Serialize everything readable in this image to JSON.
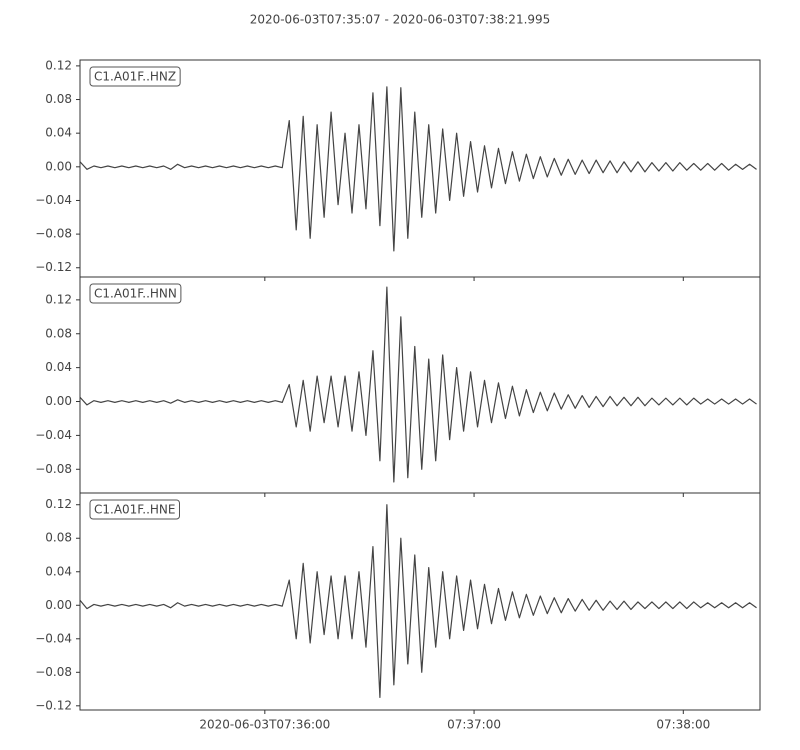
{
  "chart_data": {
    "type": "line",
    "title": "2020-06-03T07:35:07  -  2020-06-03T07:38:21.995",
    "xlim": [
      0,
      194.995
    ],
    "xticks": [
      {
        "value": 53,
        "label": "2020-06-03T07:36:00"
      },
      {
        "value": 113,
        "label": "07:37:00"
      },
      {
        "value": 173,
        "label": "07:38:00"
      }
    ],
    "x": [
      0,
      2,
      4,
      6,
      8,
      10,
      12,
      14,
      16,
      18,
      20,
      22,
      24,
      26,
      28,
      30,
      32,
      34,
      36,
      38,
      40,
      42,
      44,
      46,
      48,
      50,
      52,
      54,
      56,
      58,
      60,
      62,
      64,
      66,
      68,
      70,
      72,
      74,
      76,
      78,
      80,
      82,
      84,
      86,
      88,
      90,
      92,
      94,
      96,
      98,
      100,
      102,
      104,
      106,
      108,
      110,
      112,
      114,
      116,
      118,
      120,
      122,
      124,
      126,
      128,
      130,
      132,
      134,
      136,
      138,
      140,
      142,
      144,
      146,
      148,
      150,
      152,
      154,
      156,
      158,
      160,
      162,
      164,
      166,
      168,
      170,
      172,
      174,
      176,
      178,
      180,
      182,
      184,
      186,
      188,
      190,
      192,
      194
    ],
    "series": [
      {
        "name": "C1.A01F..HNZ",
        "color": "#444444",
        "ylim": [
          -0.131,
          0.127
        ],
        "yticks": [
          {
            "value": 0.12,
            "label": "0.12"
          },
          {
            "value": 0.08,
            "label": "0.08"
          },
          {
            "value": 0.04,
            "label": "0.04"
          },
          {
            "value": 0,
            "label": "0.00"
          },
          {
            "value": -0.04,
            "label": "−0.04"
          },
          {
            "value": -0.08,
            "label": "−0.08"
          },
          {
            "value": -0.12,
            "label": "−0.12"
          }
        ],
        "values": [
          0.006,
          -0.003,
          0.001,
          -0.001,
          0.001,
          -0.001,
          0.001,
          -0.001,
          0.001,
          -0.001,
          0.001,
          -0.001,
          0.001,
          -0.003,
          0.003,
          -0.001,
          0.001,
          -0.001,
          0.001,
          -0.001,
          0.001,
          -0.001,
          0.001,
          -0.001,
          0.001,
          -0.001,
          0.001,
          -0.001,
          0.001,
          -0.001,
          0.055,
          -0.075,
          0.06,
          -0.085,
          0.05,
          -0.06,
          0.065,
          -0.045,
          0.04,
          -0.055,
          0.05,
          -0.05,
          0.088,
          -0.07,
          0.095,
          -0.1,
          0.094,
          -0.085,
          0.065,
          -0.06,
          0.05,
          -0.055,
          0.045,
          -0.04,
          0.04,
          -0.035,
          0.03,
          -0.03,
          0.025,
          -0.025,
          0.022,
          -0.02,
          0.018,
          -0.017,
          0.015,
          -0.014,
          0.012,
          -0.012,
          0.01,
          -0.01,
          0.009,
          -0.009,
          0.008,
          -0.008,
          0.008,
          -0.007,
          0.007,
          -0.007,
          0.006,
          -0.006,
          0.006,
          -0.006,
          0.005,
          -0.005,
          0.005,
          -0.005,
          0.005,
          -0.004,
          0.004,
          -0.004,
          0.004,
          -0.004,
          0.004,
          -0.004,
          0.003,
          -0.003,
          0.003,
          -0.003
        ]
      },
      {
        "name": "C1.A01F..HNN",
        "color": "#444444",
        "ylim": [
          -0.108,
          0.147
        ],
        "yticks": [
          {
            "value": 0.12,
            "label": "0.12"
          },
          {
            "value": 0.08,
            "label": "0.08"
          },
          {
            "value": 0.04,
            "label": "0.04"
          },
          {
            "value": 0,
            "label": "0.00"
          },
          {
            "value": -0.04,
            "label": "−0.04"
          },
          {
            "value": -0.08,
            "label": "−0.08"
          }
        ],
        "values": [
          0.005,
          -0.004,
          0.001,
          -0.001,
          0.001,
          -0.001,
          0.001,
          -0.001,
          0.001,
          -0.001,
          0.001,
          -0.001,
          0.001,
          -0.002,
          0.002,
          -0.001,
          0.001,
          -0.001,
          0.001,
          -0.001,
          0.001,
          -0.001,
          0.001,
          -0.001,
          0.001,
          -0.001,
          0.001,
          -0.001,
          0.001,
          -0.001,
          0.02,
          -0.03,
          0.025,
          -0.035,
          0.03,
          -0.025,
          0.03,
          -0.03,
          0.03,
          -0.035,
          0.035,
          -0.04,
          0.06,
          -0.07,
          0.135,
          -0.095,
          0.1,
          -0.09,
          0.065,
          -0.08,
          0.05,
          -0.07,
          0.055,
          -0.045,
          0.04,
          -0.035,
          0.035,
          -0.03,
          0.025,
          -0.025,
          0.022,
          -0.02,
          0.018,
          -0.017,
          0.014,
          -0.013,
          0.011,
          -0.011,
          0.01,
          -0.009,
          0.008,
          -0.008,
          0.007,
          -0.007,
          0.006,
          -0.006,
          0.006,
          -0.005,
          0.005,
          -0.005,
          0.005,
          -0.005,
          0.004,
          -0.004,
          0.004,
          -0.004,
          0.004,
          -0.004,
          0.004,
          -0.003,
          0.003,
          -0.003,
          0.003,
          -0.003,
          0.003,
          -0.003,
          0.003,
          -0.003
        ]
      },
      {
        "name": "C1.A01F..HNE",
        "color": "#444444",
        "ylim": [
          -0.125,
          0.134
        ],
        "yticks": [
          {
            "value": 0.12,
            "label": "0.12"
          },
          {
            "value": 0.08,
            "label": "0.08"
          },
          {
            "value": 0.04,
            "label": "0.04"
          },
          {
            "value": 0,
            "label": "0.00"
          },
          {
            "value": -0.04,
            "label": "−0.04"
          },
          {
            "value": -0.08,
            "label": "−0.08"
          },
          {
            "value": -0.12,
            "label": "−0.12"
          }
        ],
        "values": [
          0.006,
          -0.004,
          0.001,
          -0.001,
          0.001,
          -0.001,
          0.001,
          -0.001,
          0.001,
          -0.001,
          0.001,
          -0.001,
          0.001,
          -0.003,
          0.003,
          -0.001,
          0.001,
          -0.001,
          0.001,
          -0.001,
          0.001,
          -0.001,
          0.001,
          -0.001,
          0.001,
          -0.001,
          0.001,
          -0.001,
          0.001,
          -0.001,
          0.03,
          -0.04,
          0.05,
          -0.045,
          0.04,
          -0.035,
          0.035,
          -0.04,
          0.035,
          -0.04,
          0.04,
          -0.05,
          0.07,
          -0.11,
          0.12,
          -0.095,
          0.08,
          -0.07,
          0.06,
          -0.08,
          0.045,
          -0.05,
          0.04,
          -0.04,
          0.035,
          -0.03,
          0.03,
          -0.028,
          0.025,
          -0.022,
          0.02,
          -0.018,
          0.016,
          -0.015,
          0.013,
          -0.012,
          0.011,
          -0.01,
          0.009,
          -0.009,
          0.008,
          -0.007,
          0.007,
          -0.006,
          0.006,
          -0.006,
          0.005,
          -0.005,
          0.005,
          -0.005,
          0.004,
          -0.004,
          0.004,
          -0.004,
          0.004,
          -0.004,
          0.004,
          -0.004,
          0.004,
          -0.003,
          0.003,
          -0.003,
          0.003,
          -0.003,
          0.003,
          -0.003,
          0.003,
          -0.003
        ]
      }
    ]
  }
}
